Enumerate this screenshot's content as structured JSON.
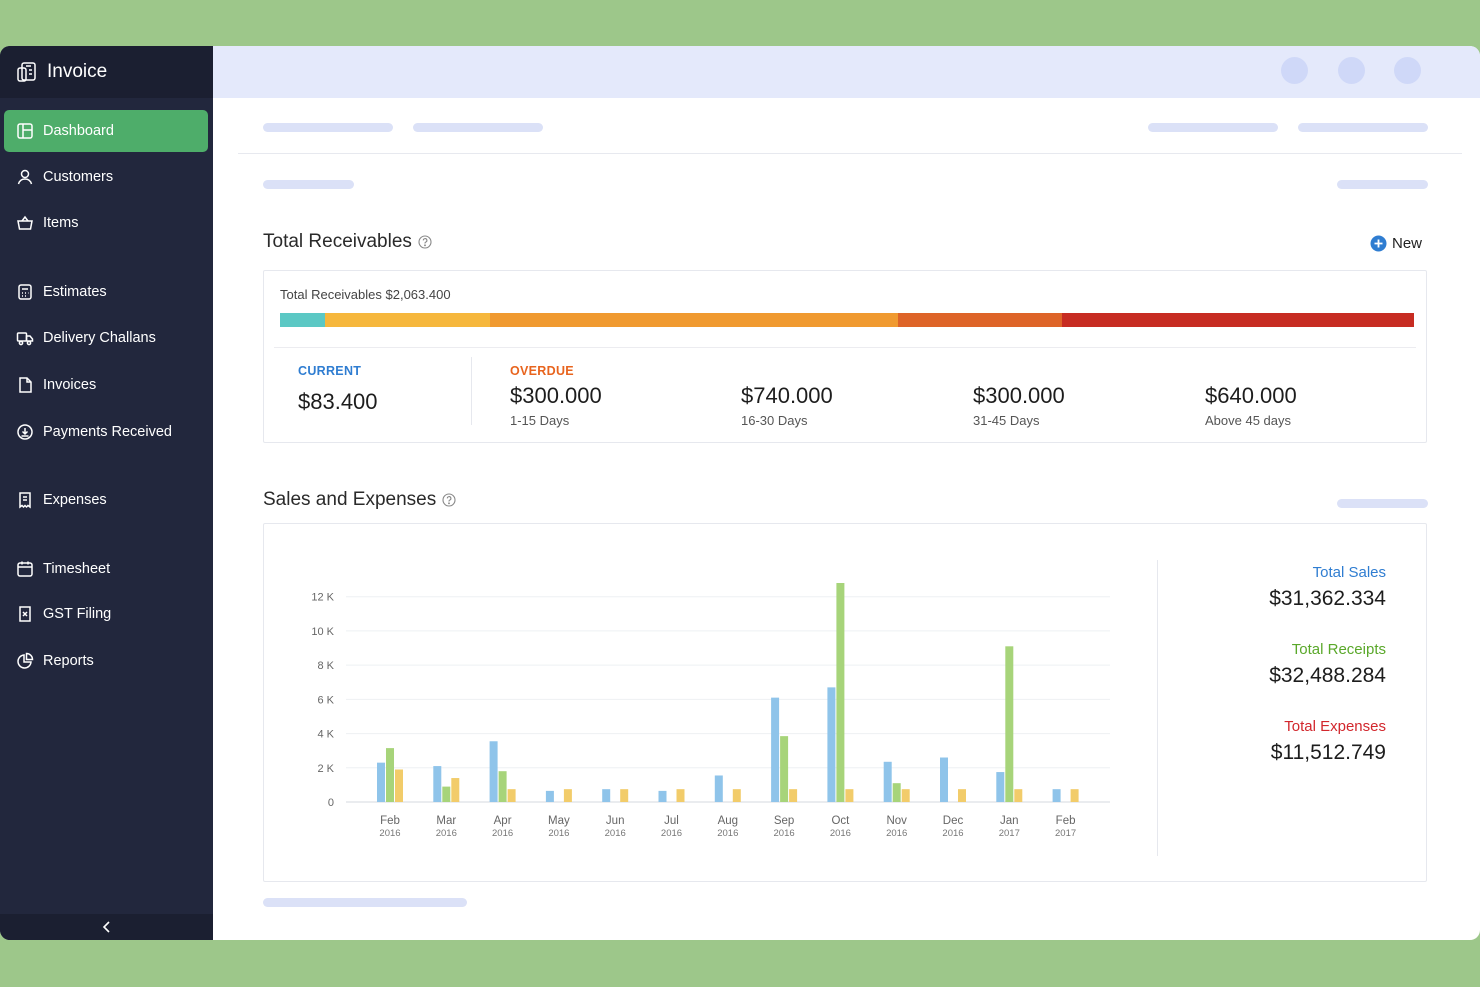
{
  "sidebar": {
    "brand": "Invoice",
    "items": [
      {
        "label": "Dashboard",
        "icon": "dashboard-icon",
        "active": true
      },
      {
        "label": "Customers",
        "icon": "user-icon"
      },
      {
        "label": "Items",
        "icon": "basket-icon"
      },
      {
        "label": "Estimates",
        "icon": "calculator-icon"
      },
      {
        "label": "Delivery Challans",
        "icon": "truck-icon"
      },
      {
        "label": "Invoices",
        "icon": "document-icon"
      },
      {
        "label": "Payments Received",
        "icon": "payment-icon"
      },
      {
        "label": "Expenses",
        "icon": "receipt-icon"
      },
      {
        "label": "Timesheet",
        "icon": "calendar-icon"
      },
      {
        "label": "GST Filing",
        "icon": "gst-icon"
      },
      {
        "label": "Reports",
        "icon": "pie-chart-icon"
      }
    ],
    "collapse_icon": "chevron-left-icon"
  },
  "receivables": {
    "title": "Total Receivables",
    "new_label": "New",
    "total_label": "Total Receivables $2,063.400",
    "segment_colors": [
      "#5bc8c4",
      "#f6b73c",
      "#f09a30",
      "#de6428",
      "#c72c22"
    ],
    "segment_fractions": [
      0.04,
      0.145,
      0.36,
      0.145,
      0.31
    ],
    "current": {
      "label": "CURRENT",
      "amount": "$83.400",
      "color": "#2f7dd1"
    },
    "overdue_label": "OVERDUE",
    "overdue_color": "#e8641e",
    "overdue": [
      {
        "amount": "$300.000",
        "range": "1-15 Days"
      },
      {
        "amount": "$740.000",
        "range": "16-30 Days"
      },
      {
        "amount": "$300.000",
        "range": "31-45 Days"
      },
      {
        "amount": "$640.000",
        "range": "Above 45 days"
      }
    ]
  },
  "sales": {
    "title": "Sales and Expenses",
    "totals": [
      {
        "label": "Total Sales",
        "value": "$31,362.334",
        "color": "#2f7dd1"
      },
      {
        "label": "Total Receipts",
        "value": "$32,488.284",
        "color": "#5aa82a"
      },
      {
        "label": "Total Expenses",
        "value": "$11,512.749",
        "color": "#d2272d"
      }
    ]
  },
  "chart_data": {
    "type": "bar",
    "categories": [
      [
        "Feb",
        "2016"
      ],
      [
        "Mar",
        "2016"
      ],
      [
        "Apr",
        "2016"
      ],
      [
        "May",
        "2016"
      ],
      [
        "Jun",
        "2016"
      ],
      [
        "Jul",
        "2016"
      ],
      [
        "Aug",
        "2016"
      ],
      [
        "Sep",
        "2016"
      ],
      [
        "Oct",
        "2016"
      ],
      [
        "Nov",
        "2016"
      ],
      [
        "Dec",
        "2016"
      ],
      [
        "Jan",
        "2017"
      ],
      [
        "Feb",
        "2017"
      ]
    ],
    "series": [
      {
        "color": "#8fc4ea",
        "values": [
          2300,
          2100,
          3550,
          650,
          750,
          650,
          1550,
          6100,
          6700,
          2350,
          2600,
          1750,
          750
        ]
      },
      {
        "color": "#a7d47a",
        "values": [
          3150,
          900,
          1800,
          0,
          0,
          0,
          0,
          3850,
          12800,
          1100,
          0,
          9100,
          0
        ]
      },
      {
        "color": "#f2cc6a",
        "values": [
          1900,
          1400,
          750,
          750,
          750,
          750,
          750,
          750,
          750,
          750,
          750,
          750,
          750
        ]
      }
    ],
    "yticks": [
      "0",
      "2 K",
      "4 K",
      "6 K",
      "8 K",
      "10 K",
      "12 K"
    ],
    "ylim": [
      0,
      12800
    ],
    "grid": true
  }
}
